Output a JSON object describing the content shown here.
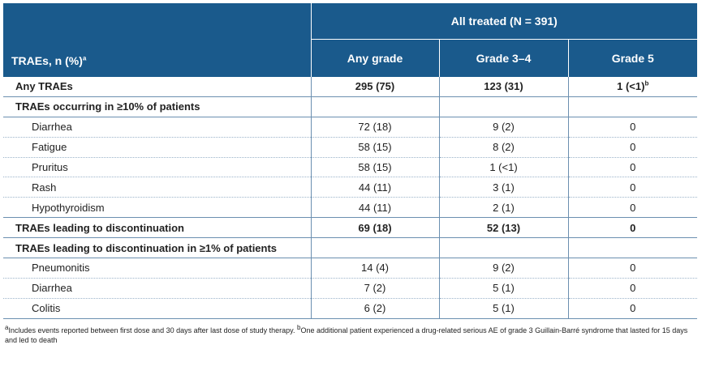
{
  "header": {
    "group_label": "All treated (N = 391)",
    "row_label": "TRAEs, n (%)",
    "row_label_sup": "a",
    "columns": [
      "Any grade",
      "Grade 3–4",
      "Grade 5"
    ]
  },
  "rows": [
    {
      "label": "Any TRAEs",
      "any": "295 (75)",
      "g34": "123 (31)",
      "g5": "1 (<1)",
      "g5_sup": "b"
    },
    {
      "label": "TRAEs occurring in ≥10% of patients"
    },
    {
      "label": "Diarrhea",
      "any": "72 (18)",
      "g34": "9 (2)",
      "g5": "0"
    },
    {
      "label": "Fatigue",
      "any": "58 (15)",
      "g34": "8 (2)",
      "g5": "0"
    },
    {
      "label": "Pruritus",
      "any": "58 (15)",
      "g34": "1 (<1)",
      "g5": "0"
    },
    {
      "label": "Rash",
      "any": "44 (11)",
      "g34": "3 (1)",
      "g5": "0"
    },
    {
      "label": "Hypothyroidism",
      "any": "44 (11)",
      "g34": "2 (1)",
      "g5": "0"
    },
    {
      "label": "TRAEs leading to discontinuation",
      "any": "69 (18)",
      "g34": "52 (13)",
      "g5": "0"
    },
    {
      "label": "TRAEs leading to discontinuation in ≥1% of patients"
    },
    {
      "label": "Pneumonitis",
      "any": "14 (4)",
      "g34": "9 (2)",
      "g5": "0"
    },
    {
      "label": "Diarrhea",
      "any": "7 (2)",
      "g34": "5 (1)",
      "g5": "0"
    },
    {
      "label": "Colitis",
      "any": "6 (2)",
      "g34": "5 (1)",
      "g5": "0"
    }
  ],
  "footnotes": {
    "a_marker": "a",
    "a_text": "Includes events reported between first dose and 30 days after last dose of study therapy. ",
    "b_marker": "b",
    "b_text": "One additional patient experienced a drug-related serious AE of grade 3 Guillain-Barré syndrome that lasted for 15 days and led to death"
  },
  "colors": {
    "header_bg": "#1a5a8c",
    "header_text": "#ffffff",
    "rule": "#6b8fb0"
  }
}
